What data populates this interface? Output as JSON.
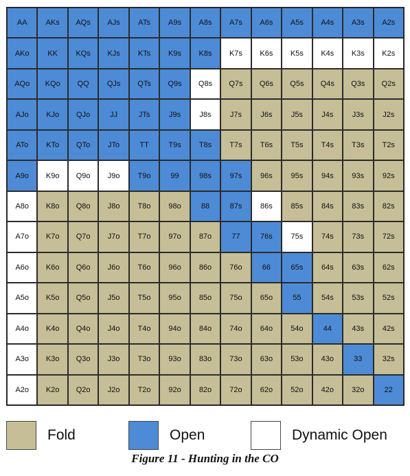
{
  "chart_data": {
    "type": "table",
    "title": "Figure 11 - Hunting in the CO",
    "legend": [
      {
        "key": "F",
        "label": "Fold",
        "color": "#c5be97"
      },
      {
        "key": "O",
        "label": "Open",
        "color": "#4e8bd6"
      },
      {
        "key": "D",
        "label": "Dynamic Open",
        "color": "#ffffff"
      }
    ],
    "rows": [
      {
        "hands": [
          "AA",
          "AKs",
          "AQs",
          "AJs",
          "ATs",
          "A9s",
          "A8s",
          "A7s",
          "A6s",
          "A5s",
          "A4s",
          "A3s",
          "A2s"
        ],
        "actions": [
          "O",
          "O",
          "O",
          "O",
          "O",
          "O",
          "O",
          "O",
          "O",
          "O",
          "O",
          "O",
          "O"
        ]
      },
      {
        "hands": [
          "AKo",
          "KK",
          "KQs",
          "KJs",
          "KTs",
          "K9s",
          "K8s",
          "K7s",
          "K6s",
          "K5s",
          "K4s",
          "K3s",
          "K2s"
        ],
        "actions": [
          "O",
          "O",
          "O",
          "O",
          "O",
          "O",
          "O",
          "D",
          "D",
          "D",
          "D",
          "D",
          "D"
        ]
      },
      {
        "hands": [
          "AQo",
          "KQo",
          "QQ",
          "QJs",
          "QTs",
          "Q9s",
          "Q8s",
          "Q7s",
          "Q6s",
          "Q5s",
          "Q4s",
          "Q3s",
          "Q2s"
        ],
        "actions": [
          "O",
          "O",
          "O",
          "O",
          "O",
          "O",
          "D",
          "F",
          "F",
          "F",
          "F",
          "F",
          "F"
        ]
      },
      {
        "hands": [
          "AJo",
          "KJo",
          "QJo",
          "JJ",
          "JTs",
          "J9s",
          "J8s",
          "J7s",
          "J6s",
          "J5s",
          "J4s",
          "J3s",
          "J2s"
        ],
        "actions": [
          "O",
          "O",
          "O",
          "O",
          "O",
          "O",
          "D",
          "F",
          "F",
          "F",
          "F",
          "F",
          "F"
        ]
      },
      {
        "hands": [
          "ATo",
          "KTo",
          "QTo",
          "JTo",
          "TT",
          "T9s",
          "T8s",
          "T7s",
          "T6s",
          "T5s",
          "T4s",
          "T3s",
          "T2s"
        ],
        "actions": [
          "O",
          "O",
          "O",
          "O",
          "O",
          "O",
          "O",
          "F",
          "F",
          "F",
          "F",
          "F",
          "F"
        ]
      },
      {
        "hands": [
          "A9o",
          "K9o",
          "Q9o",
          "J9o",
          "T9o",
          "99",
          "98s",
          "97s",
          "96s",
          "95s",
          "94s",
          "93s",
          "92s"
        ],
        "actions": [
          "O",
          "D",
          "D",
          "D",
          "O",
          "O",
          "O",
          "O",
          "F",
          "F",
          "F",
          "F",
          "F"
        ]
      },
      {
        "hands": [
          "A8o",
          "K8o",
          "Q8o",
          "J8o",
          "T8o",
          "98o",
          "88",
          "87s",
          "86s",
          "85s",
          "84s",
          "83s",
          "82s"
        ],
        "actions": [
          "D",
          "F",
          "F",
          "F",
          "F",
          "F",
          "O",
          "O",
          "D",
          "F",
          "F",
          "F",
          "F"
        ]
      },
      {
        "hands": [
          "A7o",
          "K7o",
          "Q7o",
          "J7o",
          "T7o",
          "97o",
          "87o",
          "77",
          "76s",
          "75s",
          "74s",
          "73s",
          "72s"
        ],
        "actions": [
          "D",
          "F",
          "F",
          "F",
          "F",
          "F",
          "F",
          "O",
          "O",
          "D",
          "F",
          "F",
          "F"
        ]
      },
      {
        "hands": [
          "A6o",
          "K6o",
          "Q6o",
          "J6o",
          "T6o",
          "96o",
          "86o",
          "76o",
          "66",
          "65s",
          "64s",
          "63s",
          "62s"
        ],
        "actions": [
          "D",
          "F",
          "F",
          "F",
          "F",
          "F",
          "F",
          "F",
          "O",
          "O",
          "F",
          "F",
          "F"
        ]
      },
      {
        "hands": [
          "A5o",
          "K5o",
          "Q5o",
          "J5o",
          "T5o",
          "95o",
          "85o",
          "75o",
          "65o",
          "55",
          "54s",
          "53s",
          "52s"
        ],
        "actions": [
          "D",
          "F",
          "F",
          "F",
          "F",
          "F",
          "F",
          "F",
          "F",
          "O",
          "F",
          "F",
          "F"
        ]
      },
      {
        "hands": [
          "A4o",
          "K4o",
          "Q4o",
          "J4o",
          "T4o",
          "94o",
          "84o",
          "74o",
          "64o",
          "54o",
          "44",
          "43s",
          "42s"
        ],
        "actions": [
          "D",
          "F",
          "F",
          "F",
          "F",
          "F",
          "F",
          "F",
          "F",
          "F",
          "O",
          "F",
          "F"
        ]
      },
      {
        "hands": [
          "A3o",
          "K3o",
          "Q3o",
          "J3o",
          "T3o",
          "93o",
          "83o",
          "73o",
          "63o",
          "53o",
          "43o",
          "33",
          "32s"
        ],
        "actions": [
          "D",
          "F",
          "F",
          "F",
          "F",
          "F",
          "F",
          "F",
          "F",
          "F",
          "F",
          "O",
          "F"
        ]
      },
      {
        "hands": [
          "A2o",
          "K2o",
          "Q2o",
          "J2o",
          "T2o",
          "92o",
          "82o",
          "72o",
          "62o",
          "52o",
          "42o",
          "32o",
          "22"
        ],
        "actions": [
          "D",
          "F",
          "F",
          "F",
          "F",
          "F",
          "F",
          "F",
          "F",
          "F",
          "F",
          "F",
          "O"
        ]
      }
    ]
  }
}
